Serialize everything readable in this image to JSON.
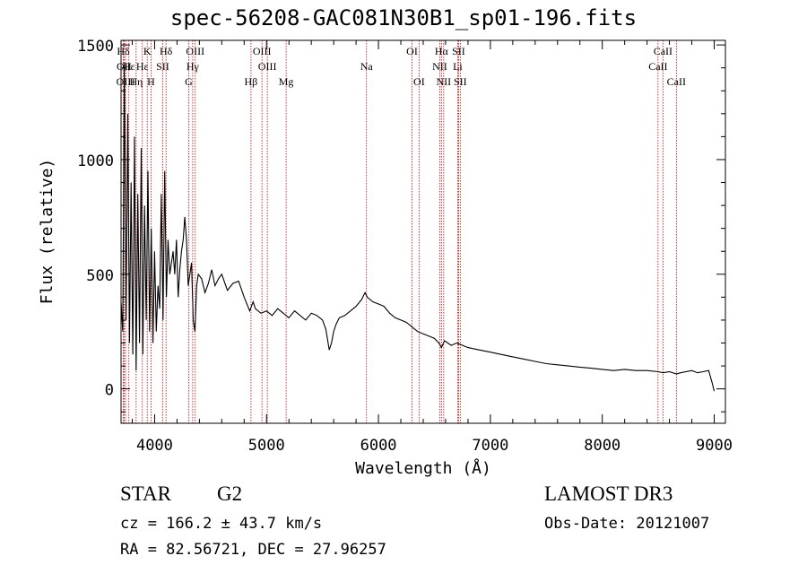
{
  "figure": {
    "title": "spec-56208-GAC081N30B1_sp01-196.fits",
    "object_type": "STAR",
    "object_class": "G2",
    "survey": "LAMOST DR3",
    "redshift_line": "cz = 166.2 ± 43.7 km/s",
    "obs_date_line": "Obs-Date: 20121007",
    "coords_line": "RA =  82.56721, DEC =  27.96257"
  },
  "colors": {
    "spectrum": "#000000",
    "line_markers": "#cc0000",
    "axes": "#000000",
    "background": "#ffffff"
  },
  "chart_data": {
    "type": "line",
    "title": "spec-56208-GAC081N30B1_sp01-196.fits",
    "xlabel": "Wavelength (Å)",
    "ylabel": "Flux (relative)",
    "xlim": [
      3700,
      9100
    ],
    "ylim": [
      -150,
      1520
    ],
    "xticks": [
      4000,
      5000,
      6000,
      7000,
      8000,
      9000
    ],
    "xtick_labels": [
      "4000",
      "5000",
      "6000",
      "7000",
      "8000",
      "9000"
    ],
    "yticks": [
      0,
      500,
      1000,
      1500
    ],
    "ytick_labels": [
      "0",
      "500",
      "1000",
      "1500"
    ],
    "grid": false,
    "legend": "none",
    "series": [
      {
        "name": "flux",
        "x": [
          3700,
          3715,
          3730,
          3745,
          3760,
          3775,
          3790,
          3805,
          3820,
          3835,
          3850,
          3865,
          3880,
          3895,
          3910,
          3925,
          3940,
          3955,
          3970,
          3985,
          4000,
          4015,
          4030,
          4045,
          4060,
          4075,
          4090,
          4105,
          4120,
          4135,
          4150,
          4165,
          4180,
          4195,
          4210,
          4225,
          4240,
          4255,
          4270,
          4285,
          4300,
          4315,
          4330,
          4345,
          4360,
          4375,
          4390,
          4420,
          4450,
          4480,
          4510,
          4540,
          4570,
          4600,
          4650,
          4700,
          4750,
          4800,
          4850,
          4880,
          4900,
          4950,
          5000,
          5050,
          5100,
          5150,
          5200,
          5250,
          5300,
          5350,
          5400,
          5450,
          5500,
          5530,
          5560,
          5580,
          5600,
          5620,
          5650,
          5700,
          5750,
          5800,
          5850,
          5880,
          5900,
          5950,
          6000,
          6050,
          6100,
          6150,
          6200,
          6250,
          6300,
          6350,
          6400,
          6450,
          6500,
          6540,
          6563,
          6590,
          6650,
          6700,
          6800,
          6900,
          7000,
          7100,
          7200,
          7300,
          7400,
          7500,
          7600,
          7700,
          7800,
          7900,
          8000,
          8100,
          8200,
          8300,
          8400,
          8500,
          8542,
          8600,
          8662,
          8700,
          8800,
          8850,
          8900,
          8950,
          8980,
          9000
        ],
        "y": [
          380,
          250,
          1400,
          300,
          1200,
          200,
          900,
          150,
          1100,
          80,
          850,
          200,
          1050,
          150,
          800,
          300,
          950,
          250,
          700,
          200,
          600,
          250,
          450,
          350,
          850,
          300,
          950,
          400,
          650,
          500,
          550,
          600,
          500,
          650,
          400,
          520,
          600,
          650,
          750,
          650,
          450,
          500,
          550,
          300,
          250,
          450,
          500,
          480,
          420,
          460,
          520,
          450,
          480,
          500,
          430,
          460,
          470,
          400,
          340,
          380,
          350,
          330,
          340,
          320,
          350,
          330,
          310,
          340,
          320,
          300,
          330,
          320,
          300,
          260,
          170,
          200,
          250,
          280,
          310,
          320,
          340,
          360,
          390,
          420,
          400,
          380,
          370,
          360,
          330,
          310,
          300,
          290,
          270,
          250,
          240,
          230,
          220,
          200,
          180,
          210,
          190,
          200,
          180,
          170,
          160,
          150,
          140,
          130,
          120,
          110,
          105,
          100,
          95,
          90,
          85,
          80,
          85,
          80,
          80,
          75,
          70,
          75,
          65,
          70,
          80,
          70,
          75,
          80,
          30,
          -10
        ]
      }
    ],
    "emission_lines": [
      {
        "label": "Hδ",
        "wavelength": 3720,
        "row": 1
      },
      {
        "label": "OII",
        "wavelength": 3727,
        "row": 2
      },
      {
        "label": "OIII",
        "wavelength": 3740,
        "row": 3
      },
      {
        "label": "Hε",
        "wavelength": 3770,
        "row": 2
      },
      {
        "label": "Hη",
        "wavelength": 3835,
        "row": 3
      },
      {
        "label": "K",
        "wavelength": 3934,
        "row": 1
      },
      {
        "label": "H",
        "wavelength": 3968,
        "row": 3
      },
      {
        "label": "Hε",
        "wavelength": 3890,
        "row": 2
      },
      {
        "label": "SII",
        "wavelength": 4072,
        "row": 2
      },
      {
        "label": "Hδ",
        "wavelength": 4102,
        "row": 1
      },
      {
        "label": "OIII",
        "wavelength": 4363,
        "row": 1
      },
      {
        "label": "Hγ",
        "wavelength": 4340,
        "row": 2
      },
      {
        "label": "G",
        "wavelength": 4305,
        "row": 3
      },
      {
        "label": "Hβ",
        "wavelength": 4861,
        "row": 3
      },
      {
        "label": "OIII",
        "wavelength": 4959,
        "row": 1
      },
      {
        "label": "OIII",
        "wavelength": 5007,
        "row": 2
      },
      {
        "label": "Mg",
        "wavelength": 5175,
        "row": 3
      },
      {
        "label": "Na",
        "wavelength": 5893,
        "row": 2
      },
      {
        "label": "OI",
        "wavelength": 6300,
        "row": 1
      },
      {
        "label": "OI",
        "wavelength": 6363,
        "row": 3
      },
      {
        "label": "NII",
        "wavelength": 6548,
        "row": 2
      },
      {
        "label": "Hα",
        "wavelength": 6563,
        "row": 1
      },
      {
        "label": "NII",
        "wavelength": 6583,
        "row": 3
      },
      {
        "label": "Li",
        "wavelength": 6708,
        "row": 2
      },
      {
        "label": "SII",
        "wavelength": 6716,
        "row": 1
      },
      {
        "label": "SII",
        "wavelength": 6731,
        "row": 3
      },
      {
        "label": "CaII",
        "wavelength": 8498,
        "row": 2
      },
      {
        "label": "CaII",
        "wavelength": 8542,
        "row": 1
      },
      {
        "label": "CaII",
        "wavelength": 8662,
        "row": 3
      }
    ]
  }
}
